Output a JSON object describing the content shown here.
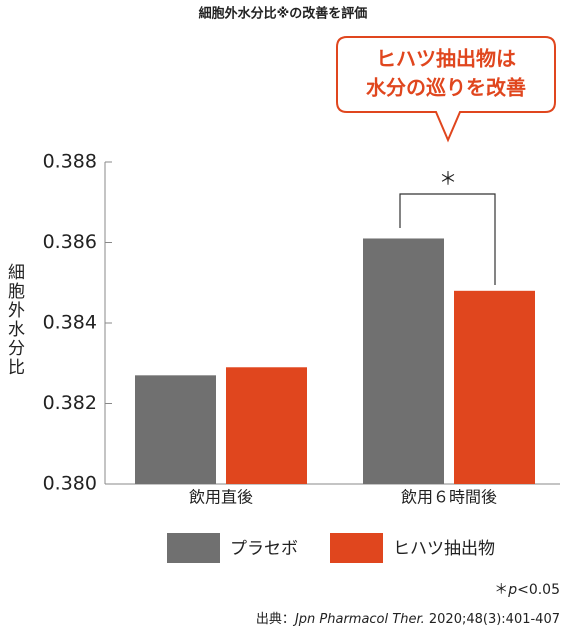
{
  "chart_data": {
    "type": "bar",
    "title": "細胞外水分比※の改善を評価",
    "callout": [
      "ヒハツ抽出物は",
      "水分の巡りを改善"
    ],
    "y_label": "細胞外水分比",
    "categories": [
      "飲用直後",
      "飲用６時間後"
    ],
    "series": [
      {
        "name": "プラセボ",
        "color": "#707070",
        "values": [
          0.3827,
          0.3861
        ]
      },
      {
        "name": "ヒハツ抽出物",
        "color": "#e0461e",
        "values": [
          0.3829,
          0.3848
        ]
      }
    ],
    "ylim": [
      0.38,
      0.388
    ],
    "yticks": [
      {
        "value": 0.38,
        "label": "0.380"
      },
      {
        "value": 0.382,
        "label": "0.382"
      },
      {
        "value": 0.384,
        "label": "0.384"
      },
      {
        "value": 0.386,
        "label": "0.386"
      },
      {
        "value": 0.388,
        "label": "0.388"
      }
    ],
    "significance": "＊",
    "footnote": {
      "mark": "＊",
      "p": "p",
      "rest": "<0.05"
    },
    "source": {
      "label": "出典：",
      "journal": "Jpn Pharmacol Ther.",
      "citation": "2020;48(3):401-407"
    }
  }
}
